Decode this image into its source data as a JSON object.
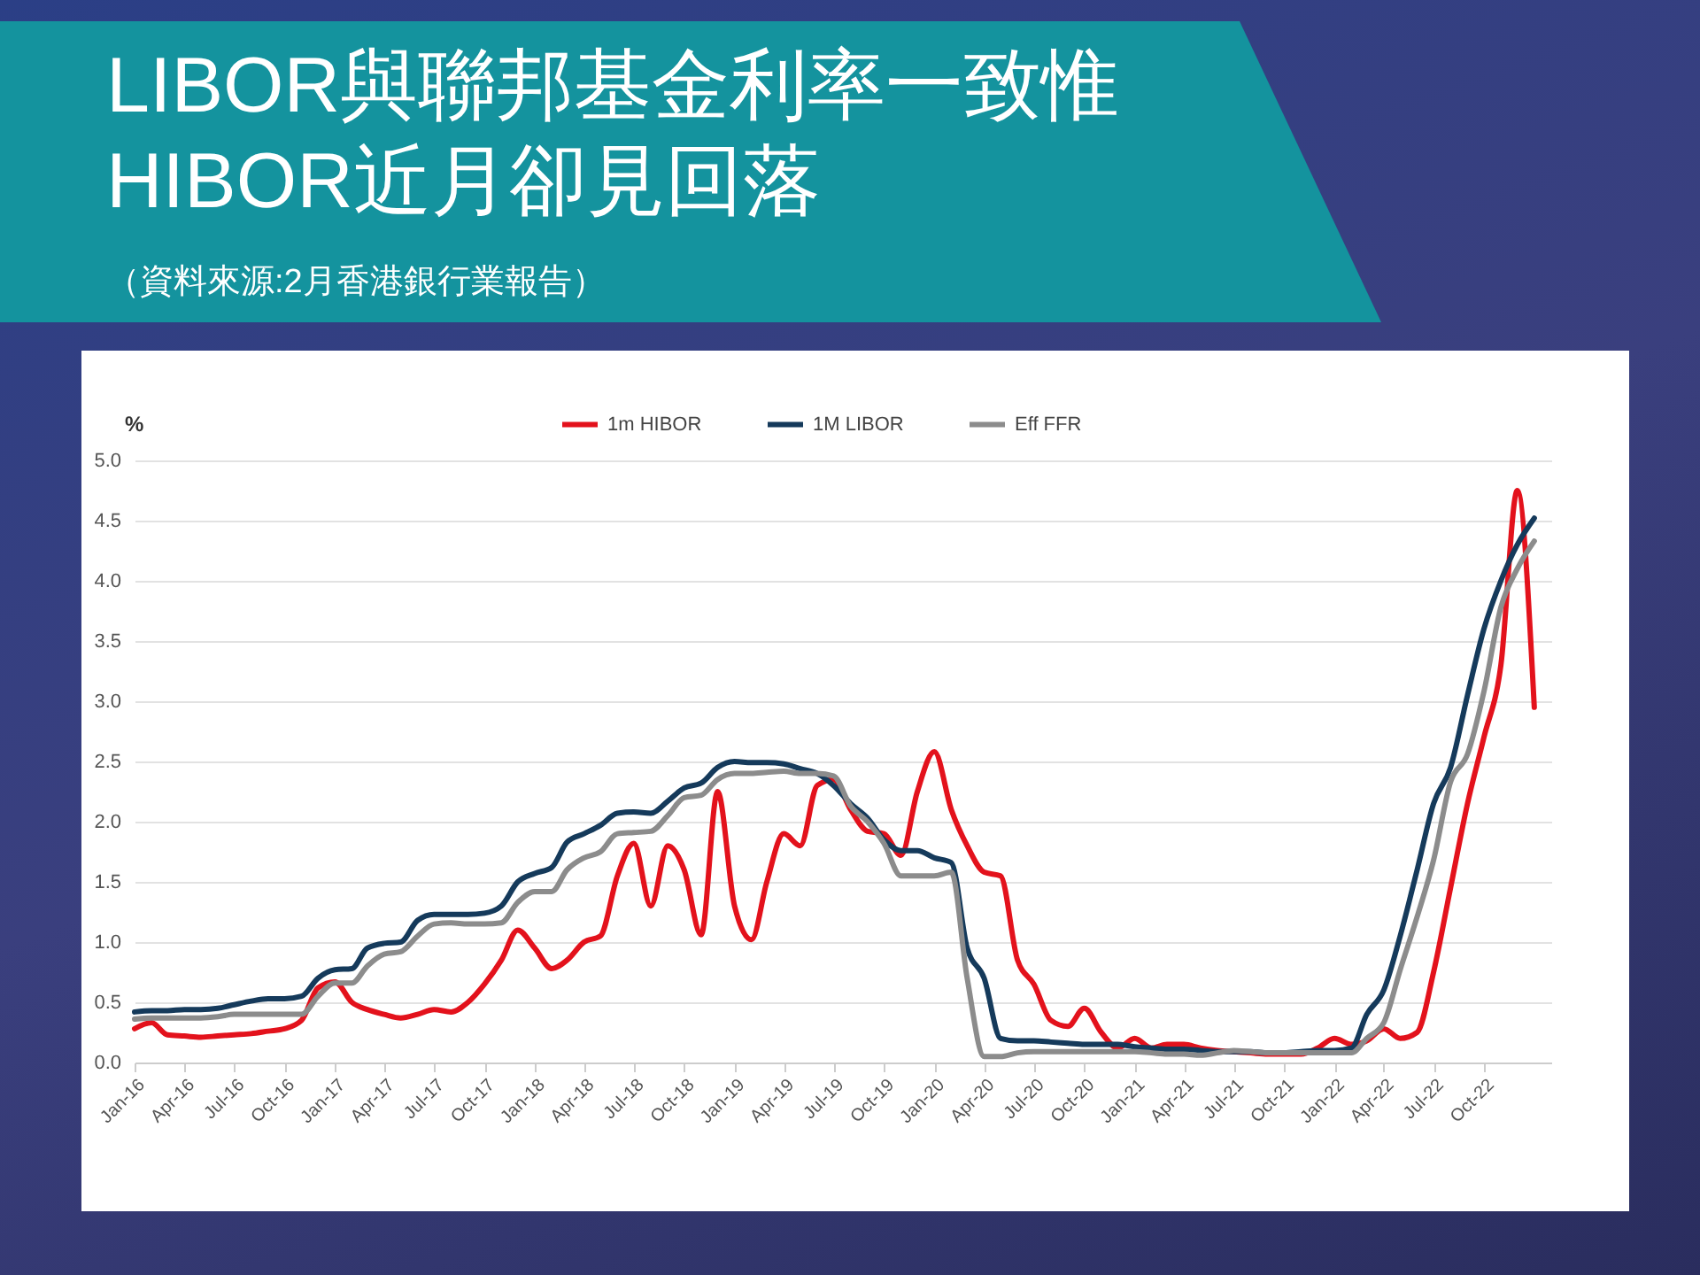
{
  "chart_data": {
    "type": "line",
    "title": "LIBOR與聯邦基金利率一致惟HIBOR近月卻見回落",
    "subtitle": "（資料來源:2月香港銀行業報告）",
    "ylabel": "%",
    "x": [
      "2016-01",
      "2016-02",
      "2016-03",
      "2016-04",
      "2016-05",
      "2016-06",
      "2016-07",
      "2016-08",
      "2016-09",
      "2016-10",
      "2016-11",
      "2016-12",
      "2017-01",
      "2017-02",
      "2017-03",
      "2017-04",
      "2017-05",
      "2017-06",
      "2017-07",
      "2017-08",
      "2017-09",
      "2017-10",
      "2017-11",
      "2017-12",
      "2018-01",
      "2018-02",
      "2018-03",
      "2018-04",
      "2018-05",
      "2018-06",
      "2018-07",
      "2018-08",
      "2018-09",
      "2018-10",
      "2018-11",
      "2018-12",
      "2019-01",
      "2019-02",
      "2019-03",
      "2019-04",
      "2019-05",
      "2019-06",
      "2019-07",
      "2019-08",
      "2019-09",
      "2019-10",
      "2019-11",
      "2019-12",
      "2020-01",
      "2020-02",
      "2020-03",
      "2020-04",
      "2020-05",
      "2020-06",
      "2020-07",
      "2020-08",
      "2020-09",
      "2020-10",
      "2020-11",
      "2020-12",
      "2021-01",
      "2021-02",
      "2021-03",
      "2021-04",
      "2021-05",
      "2021-06",
      "2021-07",
      "2021-08",
      "2021-09",
      "2021-10",
      "2021-11",
      "2021-12",
      "2022-01",
      "2022-02",
      "2022-03",
      "2022-04",
      "2022-05",
      "2022-06",
      "2022-07",
      "2022-08",
      "2022-09",
      "2022-10",
      "2022-11",
      "2022-12",
      "2023-01"
    ],
    "series": [
      {
        "name": "1m HIBOR",
        "color": "#e3121c",
        "values": [
          0.28,
          0.33,
          0.23,
          0.22,
          0.21,
          0.22,
          0.23,
          0.24,
          0.26,
          0.28,
          0.35,
          0.62,
          0.67,
          0.5,
          0.44,
          0.4,
          0.37,
          0.4,
          0.44,
          0.42,
          0.5,
          0.65,
          0.85,
          1.1,
          0.95,
          0.78,
          0.85,
          1.0,
          1.05,
          1.55,
          1.82,
          1.3,
          1.8,
          1.6,
          1.06,
          2.25,
          1.3,
          1.02,
          1.5,
          1.9,
          1.8,
          2.3,
          2.35,
          2.1,
          1.92,
          1.9,
          1.72,
          2.25,
          2.58,
          2.1,
          1.8,
          1.58,
          1.55,
          0.85,
          0.65,
          0.35,
          0.3,
          0.45,
          0.25,
          0.12,
          0.2,
          0.12,
          0.15,
          0.15,
          0.12,
          0.1,
          0.09,
          0.08,
          0.07,
          0.07,
          0.07,
          0.12,
          0.2,
          0.15,
          0.18,
          0.28,
          0.2,
          0.25,
          0.75,
          1.45,
          2.15,
          2.7,
          3.3,
          4.75,
          2.95
        ]
      },
      {
        "name": "1M LIBOR",
        "color": "#153a5b",
        "values": [
          0.42,
          0.43,
          0.43,
          0.44,
          0.44,
          0.45,
          0.48,
          0.51,
          0.53,
          0.53,
          0.55,
          0.7,
          0.77,
          0.78,
          0.95,
          0.99,
          1.0,
          1.18,
          1.23,
          1.23,
          1.23,
          1.24,
          1.3,
          1.5,
          1.57,
          1.62,
          1.83,
          1.9,
          1.97,
          2.07,
          2.08,
          2.07,
          2.17,
          2.28,
          2.32,
          2.45,
          2.5,
          2.49,
          2.49,
          2.48,
          2.44,
          2.4,
          2.3,
          2.15,
          2.03,
          1.85,
          1.76,
          1.76,
          1.7,
          1.66,
          0.95,
          0.7,
          0.2,
          0.18,
          0.18,
          0.17,
          0.16,
          0.15,
          0.15,
          0.15,
          0.13,
          0.12,
          0.11,
          0.11,
          0.1,
          0.09,
          0.09,
          0.09,
          0.08,
          0.08,
          0.09,
          0.1,
          0.1,
          0.12,
          0.4,
          0.6,
          1.05,
          1.6,
          2.15,
          2.45,
          3.05,
          3.6,
          4.0,
          4.3,
          4.52
        ]
      },
      {
        "name": "Eff FFR",
        "color": "#8c8c8c",
        "values": [
          0.36,
          0.37,
          0.37,
          0.37,
          0.37,
          0.38,
          0.4,
          0.4,
          0.4,
          0.4,
          0.4,
          0.55,
          0.66,
          0.66,
          0.8,
          0.9,
          0.92,
          1.05,
          1.15,
          1.16,
          1.15,
          1.15,
          1.16,
          1.33,
          1.42,
          1.42,
          1.6,
          1.7,
          1.75,
          1.9,
          1.91,
          1.92,
          2.05,
          2.2,
          2.22,
          2.35,
          2.4,
          2.4,
          2.41,
          2.42,
          2.4,
          2.4,
          2.38,
          2.13,
          2.0,
          1.82,
          1.55,
          1.55,
          1.55,
          1.58,
          0.7,
          0.05,
          0.05,
          0.08,
          0.09,
          0.09,
          0.09,
          0.09,
          0.09,
          0.09,
          0.09,
          0.08,
          0.07,
          0.07,
          0.06,
          0.08,
          0.1,
          0.09,
          0.08,
          0.08,
          0.08,
          0.08,
          0.08,
          0.08,
          0.2,
          0.33,
          0.77,
          1.21,
          1.68,
          2.33,
          2.56,
          3.08,
          3.78,
          4.1,
          4.33
        ]
      }
    ],
    "xlim": [
      "2016-01",
      "2023-02"
    ],
    "xticks": [
      {
        "value": "2016-01",
        "label": "Jan-16"
      },
      {
        "value": "2016-04",
        "label": "Apr-16"
      },
      {
        "value": "2016-07",
        "label": "Jul-16"
      },
      {
        "value": "2016-10",
        "label": "Oct-16"
      },
      {
        "value": "2017-01",
        "label": "Jan-17"
      },
      {
        "value": "2017-04",
        "label": "Apr-17"
      },
      {
        "value": "2017-07",
        "label": "Jul-17"
      },
      {
        "value": "2017-10",
        "label": "Oct-17"
      },
      {
        "value": "2018-01",
        "label": "Jan-18"
      },
      {
        "value": "2018-04",
        "label": "Apr-18"
      },
      {
        "value": "2018-07",
        "label": "Jul-18"
      },
      {
        "value": "2018-10",
        "label": "Oct-18"
      },
      {
        "value": "2019-01",
        "label": "Jan-19"
      },
      {
        "value": "2019-04",
        "label": "Apr-19"
      },
      {
        "value": "2019-07",
        "label": "Jul-19"
      },
      {
        "value": "2019-10",
        "label": "Oct-19"
      },
      {
        "value": "2020-01",
        "label": "Jan-20"
      },
      {
        "value": "2020-04",
        "label": "Apr-20"
      },
      {
        "value": "2020-07",
        "label": "Jul-20"
      },
      {
        "value": "2020-10",
        "label": "Oct-20"
      },
      {
        "value": "2021-01",
        "label": "Jan-21"
      },
      {
        "value": "2021-04",
        "label": "Apr-21"
      },
      {
        "value": "2021-07",
        "label": "Jul-21"
      },
      {
        "value": "2021-10",
        "label": "Oct-21"
      },
      {
        "value": "2022-01",
        "label": "Jan-22"
      },
      {
        "value": "2022-04",
        "label": "Apr-22"
      },
      {
        "value": "2022-07",
        "label": "Jul-22"
      },
      {
        "value": "2022-10",
        "label": "Oct-22"
      }
    ],
    "ylim": [
      0,
      5
    ],
    "yticks": [
      {
        "value": 0,
        "label": "0.0"
      },
      {
        "value": 0.5,
        "label": "0.5"
      },
      {
        "value": 1,
        "label": "1.0"
      },
      {
        "value": 1.5,
        "label": "1.5"
      },
      {
        "value": 2,
        "label": "2.0"
      },
      {
        "value": 2.5,
        "label": "2.5"
      },
      {
        "value": 3,
        "label": "3.0"
      },
      {
        "value": 3.5,
        "label": "3.5"
      },
      {
        "value": 4,
        "label": "4.0"
      },
      {
        "value": 4.5,
        "label": "4.5"
      },
      {
        "value": 5,
        "label": "5.0"
      }
    ],
    "grid": "y",
    "legend": "top"
  }
}
